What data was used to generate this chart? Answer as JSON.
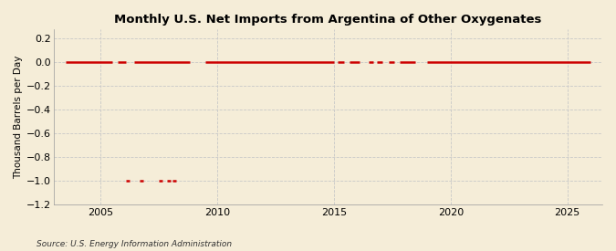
{
  "title": "Monthly U.S. Net Imports from Argentina of Other Oxygenates",
  "ylabel": "Thousand Barrels per Day",
  "source": "Source: U.S. Energy Information Administration",
  "background_color": "#f5edd8",
  "plot_bg_color": "#f5edd8",
  "line_color": "#cc0000",
  "grid_color": "#c8c8c8",
  "border_color": "#c8a878",
  "xlim": [
    2003.0,
    2026.5
  ],
  "ylim": [
    -1.2,
    0.28
  ],
  "yticks": [
    0.2,
    0.0,
    -0.2,
    -0.4,
    -0.6,
    -0.8,
    -1.0,
    -1.2
  ],
  "xticks": [
    2005,
    2010,
    2015,
    2020,
    2025
  ],
  "data_zero_segments": [
    [
      2003.5,
      2005.5
    ],
    [
      2005.75,
      2006.08
    ],
    [
      2006.42,
      2008.83
    ],
    [
      2009.5,
      2015.0
    ],
    [
      2015.17,
      2015.42
    ],
    [
      2015.67,
      2016.08
    ],
    [
      2016.5,
      2016.67
    ],
    [
      2016.83,
      2017.08
    ],
    [
      2017.33,
      2017.58
    ],
    [
      2017.83,
      2018.5
    ],
    [
      2019.0,
      2026.0
    ]
  ],
  "data_neg1_segments": [
    [
      2006.08,
      2006.25
    ],
    [
      2006.67,
      2006.83
    ],
    [
      2007.5,
      2007.67
    ],
    [
      2007.83,
      2008.0
    ],
    [
      2008.08,
      2008.25
    ]
  ],
  "title_fontsize": 9.5,
  "axis_fontsize": 7.5,
  "tick_fontsize": 8,
  "source_fontsize": 6.5
}
